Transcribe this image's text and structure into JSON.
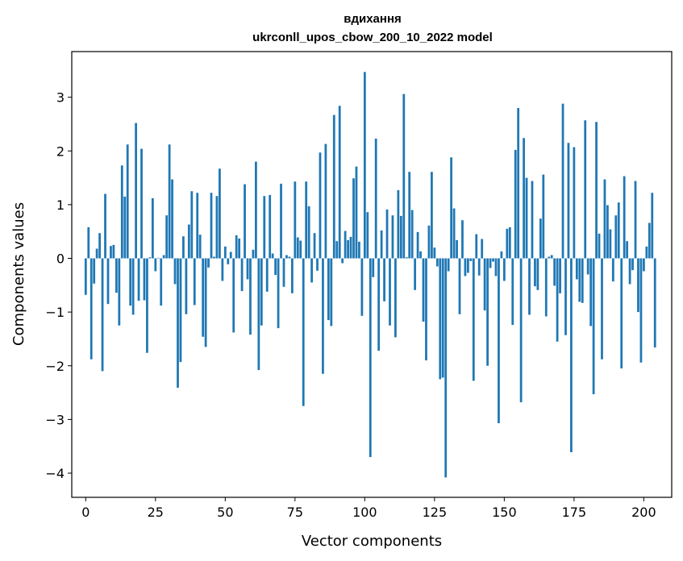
{
  "chart_data": {
    "type": "bar",
    "title_line1": "вдихання",
    "title_line2": "ukrconll_upos_cbow_200_10_2022 model",
    "xlabel": "Vector components",
    "ylabel": "Components values",
    "xlim": [
      -5,
      210
    ],
    "ylim": [
      -4.45,
      3.85
    ],
    "xticks": [
      0,
      25,
      50,
      75,
      100,
      125,
      150,
      175,
      200
    ],
    "yticks": [
      -4,
      -3,
      -2,
      -1,
      0,
      1,
      2,
      3
    ],
    "xtick_labels": [
      "0",
      "25",
      "50",
      "75",
      "100",
      "125",
      "150",
      "175",
      "200"
    ],
    "ytick_labels": [
      "−4",
      "−3",
      "−2",
      "−1",
      "0",
      "1",
      "2",
      "3"
    ],
    "bar_color": "#1f77b4",
    "grid": false,
    "values": [
      -0.68,
      0.58,
      -1.88,
      -0.47,
      0.18,
      0.47,
      -2.1,
      1.2,
      -0.85,
      0.23,
      0.25,
      -0.64,
      -1.25,
      1.73,
      1.15,
      2.12,
      -0.88,
      -1.05,
      2.52,
      -0.79,
      2.04,
      -0.78,
      -1.76,
      0.02,
      1.12,
      -0.24,
      0.01,
      -0.88,
      0.06,
      0.8,
      2.12,
      1.47,
      -0.48,
      -2.41,
      -1.93,
      0.41,
      -1.04,
      0.63,
      1.25,
      -0.87,
      1.22,
      0.44,
      -1.46,
      -1.65,
      -0.17,
      1.22,
      0.03,
      1.16,
      1.67,
      -0.42,
      0.22,
      -0.11,
      0.12,
      -1.38,
      0.43,
      0.37,
      -0.61,
      1.38,
      -0.39,
      -1.42,
      0.16,
      1.8,
      -2.08,
      -1.25,
      1.16,
      -0.62,
      1.18,
      0.09,
      -0.31,
      -1.3,
      1.39,
      -0.53,
      0.06,
      0.03,
      -0.65,
      1.43,
      0.39,
      0.33,
      -2.75,
      1.43,
      0.97,
      -0.45,
      0.47,
      -0.23,
      1.97,
      -2.15,
      2.13,
      -1.15,
      -1.26,
      2.67,
      0.32,
      2.84,
      -0.09,
      0.51,
      0.34,
      0.4,
      1.49,
      1.71,
      0.31,
      -1.07,
      3.47,
      0.86,
      -3.7,
      -0.35,
      2.23,
      -1.72,
      0.52,
      -0.8,
      0.91,
      -1.25,
      0.8,
      -1.47,
      1.27,
      0.79,
      3.06,
      0.02,
      1.61,
      0.9,
      -0.59,
      0.49,
      0.13,
      -1.18,
      -1.9,
      0.61,
      1.61,
      0.2,
      -0.15,
      -2.25,
      -2.22,
      -4.08,
      -0.24,
      1.88,
      0.93,
      0.34,
      -1.04,
      0.71,
      -0.33,
      -0.27,
      -0.05,
      -2.28,
      0.45,
      -0.32,
      0.36,
      -0.97,
      -2.0,
      -0.18,
      -0.06,
      -0.33,
      -3.07,
      0.13,
      -0.42,
      0.55,
      0.58,
      -1.24,
      2.02,
      2.8,
      -2.68,
      2.24,
      1.5,
      -1.05,
      1.44,
      -0.52,
      -0.59,
      0.74,
      1.56,
      -1.08,
      0.03,
      0.06,
      -0.51,
      -1.55,
      -0.65,
      2.88,
      -1.43,
      2.15,
      -3.61,
      2.07,
      -0.39,
      -0.81,
      -0.83,
      2.57,
      -0.3,
      -1.26,
      -2.53,
      2.54,
      0.46,
      -1.88,
      1.47,
      0.99,
      0.54,
      -0.43,
      0.8,
      1.04,
      -2.05,
      1.53,
      0.32,
      -0.48,
      -0.22,
      1.44,
      -1.0,
      -1.94,
      -0.24,
      0.22,
      0.66,
      1.22,
      -1.66
    ]
  }
}
